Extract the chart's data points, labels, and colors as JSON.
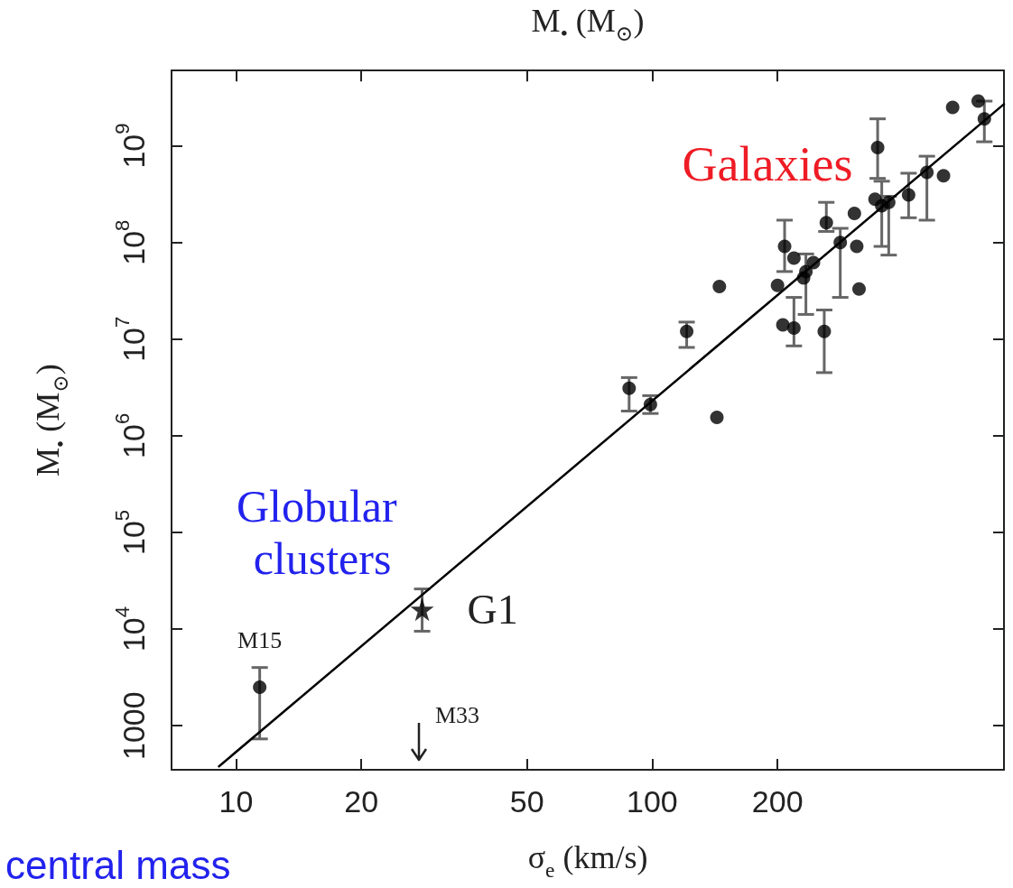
{
  "chart_data": {
    "type": "scatter",
    "xlabel": "σ$_{e}$ (km/s)",
    "ylabel": "M$_{•}$ (M$_{⊙}$)",
    "x2label": "M$_{•}$ (M$_{⊙}$)",
    "log": "xy",
    "xlim": [
      7,
      700
    ],
    "ylim": [
      350,
      6000000000
    ],
    "xticks": [
      10,
      20,
      50,
      100,
      200
    ],
    "yticks": [
      1000,
      {
        "value": 10000,
        "label": "10$^{4}$"
      },
      {
        "value": 100000,
        "label": "10$^{5}$"
      },
      {
        "value": 1000000,
        "label": "10$^{6}$"
      },
      {
        "value": 10000000,
        "label": "10$^{7}$"
      },
      {
        "value": 100000000,
        "label": "10$^{8}$"
      },
      {
        "value": 1000000000,
        "label": "10$^{9}$"
      }
    ],
    "grid": false,
    "marker": "circle",
    "series": [
      {
        "color": "#000000",
        "x": [
          88,
          99,
          143,
          121,
          145,
          200,
          208,
          219,
          234,
          244,
          231,
          206,
          219,
          259,
          283,
          262,
          306,
          310,
          314,
          343,
          356,
          370,
          348,
          413,
          457,
          501,
          527,
          607,
          628
        ],
        "values": [
          3100000,
          2100000,
          1550000,
          12000000,
          35000000,
          36000000,
          91000000,
          69000000,
          50000000,
          62000000,
          43000000,
          14000000,
          13000000,
          12000000,
          100000000,
          160000000,
          200000000,
          91000000,
          33000000,
          280000000,
          240000000,
          260000000,
          960000000,
          310000000,
          530000000,
          490000000,
          2500000000,
          2900000000,
          1900000000
        ],
        "errors": [
          [
            1800000,
            4000000
          ],
          [
            1700000,
            2600000
          ],
          null,
          [
            8200000,
            15000000
          ],
          null,
          null,
          [
            50000000,
            170000000
          ],
          null,
          [
            18000000,
            76000000
          ],
          null,
          null,
          null,
          [
            8500000,
            27000000
          ],
          [
            4500000,
            20000000
          ],
          [
            27000000,
            140000000
          ],
          [
            130000000,
            260000000
          ],
          null,
          null,
          null,
          null,
          [
            91000000,
            430000000
          ],
          [
            74000000,
            300000000
          ],
          [
            460000000,
            1900000000
          ],
          [
            180000000,
            520000000
          ],
          [
            170000000,
            780000000
          ],
          null,
          null,
          null,
          [
            1100000000,
            2900000000
          ]
        ]
      },
      {
        "color": "#000000",
        "marker": "star",
        "x": [
          28
        ],
        "values": [
          16000
        ],
        "errors": [
          [
            9500,
            26000
          ]
        ]
      },
      {
        "color": "#000000",
        "x": [
          11.4
        ],
        "values": [
          2500
        ],
        "errors": [
          [
            730,
            4000
          ]
        ]
      },
      {
        "type": "line",
        "color": "#000000",
        "marker": "none",
        "line_style": "solid",
        "x": [
          9.1,
          700
        ],
        "values": [
          380,
          2700000000
        ]
      }
    ],
    "annotations": [
      "Galaxies",
      "Globular clusters",
      {
        "text": "G1",
        "x": 28,
        "y": 16000
      },
      {
        "text": "M15",
        "x": 11.4,
        "y": 2500
      },
      "M33",
      "central mass"
    ]
  }
}
